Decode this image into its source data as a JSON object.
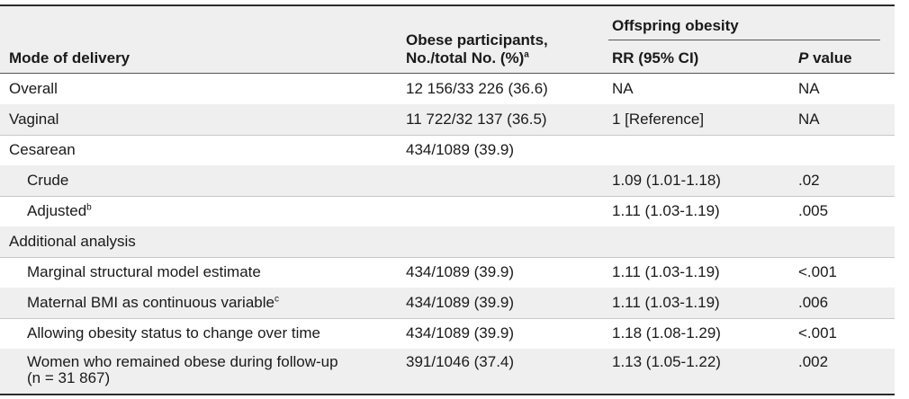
{
  "header": {
    "col_mode": "Mode of delivery",
    "col_obese_line1": "Obese participants,",
    "col_obese_line2": "No./total No. (%)",
    "col_obese_sup": "a",
    "group_offspring": "Offspring obesity",
    "col_rr": "RR (95% CI)",
    "col_p_italic": "P",
    "col_p_rest": " value"
  },
  "rows": [
    {
      "label": "Overall",
      "sup": "",
      "obese": "12 156/33 226 (36.6)",
      "rr": "NA",
      "p": "NA"
    },
    {
      "label": "Vaginal",
      "sup": "",
      "obese": "11 722/32 137 (36.5)",
      "rr": "1 [Reference]",
      "p": "NA"
    },
    {
      "label": "Cesarean",
      "sup": "",
      "obese": "434/1089 (39.9)",
      "rr": "",
      "p": ""
    },
    {
      "label": "Crude",
      "sup": "",
      "obese": "",
      "rr": "1.09 (1.01-1.18)",
      "p": ".02"
    },
    {
      "label": "Adjusted",
      "sup": "b",
      "obese": "",
      "rr": "1.11 (1.03-1.19)",
      "p": ".005"
    },
    {
      "label": "Additional analysis",
      "sup": "",
      "obese": "",
      "rr": "",
      "p": ""
    },
    {
      "label": "Marginal structural model estimate",
      "sup": "",
      "obese": "434/1089 (39.9)",
      "rr": "1.11 (1.03-1.19)",
      "p": "<.001"
    },
    {
      "label": "Maternal BMI as continuous variable",
      "sup": "c",
      "obese": "434/1089 (39.9)",
      "rr": "1.11 (1.03-1.19)",
      "p": ".006"
    },
    {
      "label": "Allowing obesity status to change over time",
      "sup": "",
      "obese": "434/1089 (39.9)",
      "rr": "1.18 (1.08-1.29)",
      "p": "<.001"
    },
    {
      "label": "Women who remained obese during follow-up",
      "label2": "(n = 31 867)",
      "sup": "",
      "obese": "391/1046 (37.4)",
      "rr": "1.13 (1.05-1.22)",
      "p": ".002"
    }
  ]
}
